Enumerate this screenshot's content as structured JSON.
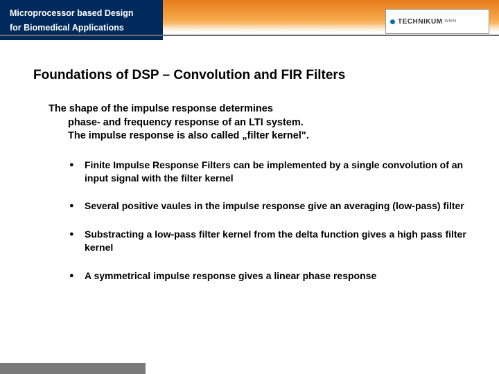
{
  "header": {
    "title_line1": "Microprocessor based Design",
    "title_line2": "for Biomedical Applications",
    "logo_main": "TECHNIKUM",
    "logo_sub": "WIEN",
    "blue_bg": "#002a5c",
    "orange_gradient_top": "#e87b1a",
    "orange_gradient_mid": "#f4a84a",
    "orange_gradient_bottom": "#ffe7c2",
    "logo_dot_color": "#0a6ea8"
  },
  "slide": {
    "title": "Foundations of DSP – Convolution and FIR Filters",
    "intro": {
      "line1": "The shape of the impulse response determines",
      "line2": "phase- and frequency response of an LTI system.",
      "line3": "The impulse response is also called „filter kernel\"."
    },
    "bullets": [
      "Finite Impulse Response Filters can be implemented by  a single convolution of an input signal with the filter kernel",
      "Several positive vaules in the impulse response give an averaging (low-pass) filter",
      "Substracting a low-pass filter kernel from the delta function gives a high pass filter kernel",
      "A symmetrical impulse response gives a linear phase response"
    ]
  },
  "style": {
    "title_fontsize": 19,
    "body_fontsize": 14.5,
    "bullet_fontsize": 14,
    "text_color": "#000000",
    "background_color": "#ffffff",
    "footer_bg": "#7a7a7a"
  }
}
